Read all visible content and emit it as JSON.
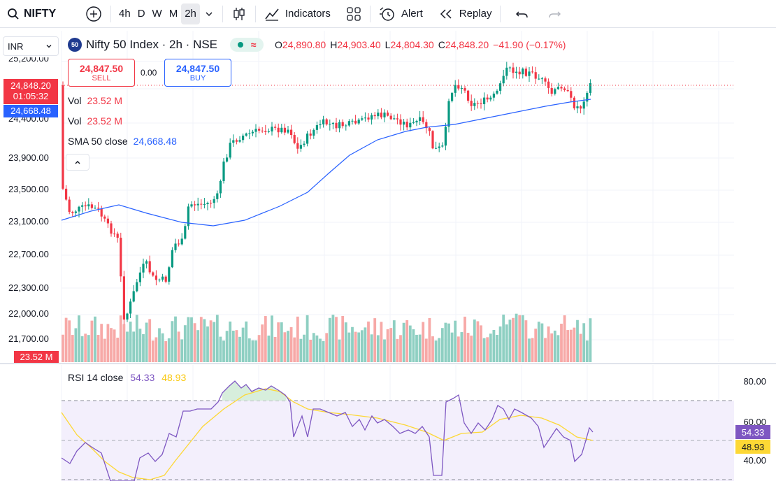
{
  "toolbar": {
    "symbol": "NIFTY",
    "intervals": [
      "4h",
      "D",
      "W",
      "M",
      "2h"
    ],
    "active_interval": "2h",
    "indicators_label": "Indicators",
    "alert_label": "Alert",
    "replay_label": "Replay"
  },
  "currency": "INR",
  "legend": {
    "badge": "50",
    "title": "Nifty 50 Index · 2h · NSE",
    "o_label": "O",
    "o": "24,890.80",
    "h_label": "H",
    "h": "24,903.40",
    "l_label": "L",
    "l": "24,804.30",
    "c_label": "C",
    "c": "24,848.20",
    "change": "−41.90 (−0.17%)"
  },
  "trade": {
    "sell_price": "24,847.50",
    "sell_label": "SELL",
    "spread": "0.00",
    "buy_price": "24,847.50",
    "buy_label": "BUY"
  },
  "studies": {
    "vol1_label": "Vol",
    "vol1_value": "23.52 M",
    "vol2_label": "Vol",
    "vol2_value": "23.52 M",
    "sma_label": "SMA 50 close",
    "sma_value": "24,668.48"
  },
  "price_axis": {
    "ticks": [
      "23,900.00",
      "23,500.00",
      "23,100.00",
      "22,700.00",
      "22,300.00",
      "22,000.00",
      "21,700.00"
    ],
    "cut_top": "25,200.00",
    "cut_mid": "24,400.00",
    "last_price": "24,848.20",
    "countdown": "01:05:32",
    "sma_tag": "24,668.48",
    "vol_tag": "23.52 M"
  },
  "rsi": {
    "label": "RSI 14 close",
    "value": "54.33",
    "ma_value": "48.93",
    "ticks": [
      "80.00",
      "60.00",
      "40.00"
    ]
  },
  "colors": {
    "up": "#089981",
    "down": "#f23645",
    "vol_up": "#8ecfc2",
    "vol_down": "#f7a9a7",
    "sma": "#2962ff",
    "rsi": "#7e57c2",
    "rsi_ma": "#fdd835"
  }
}
